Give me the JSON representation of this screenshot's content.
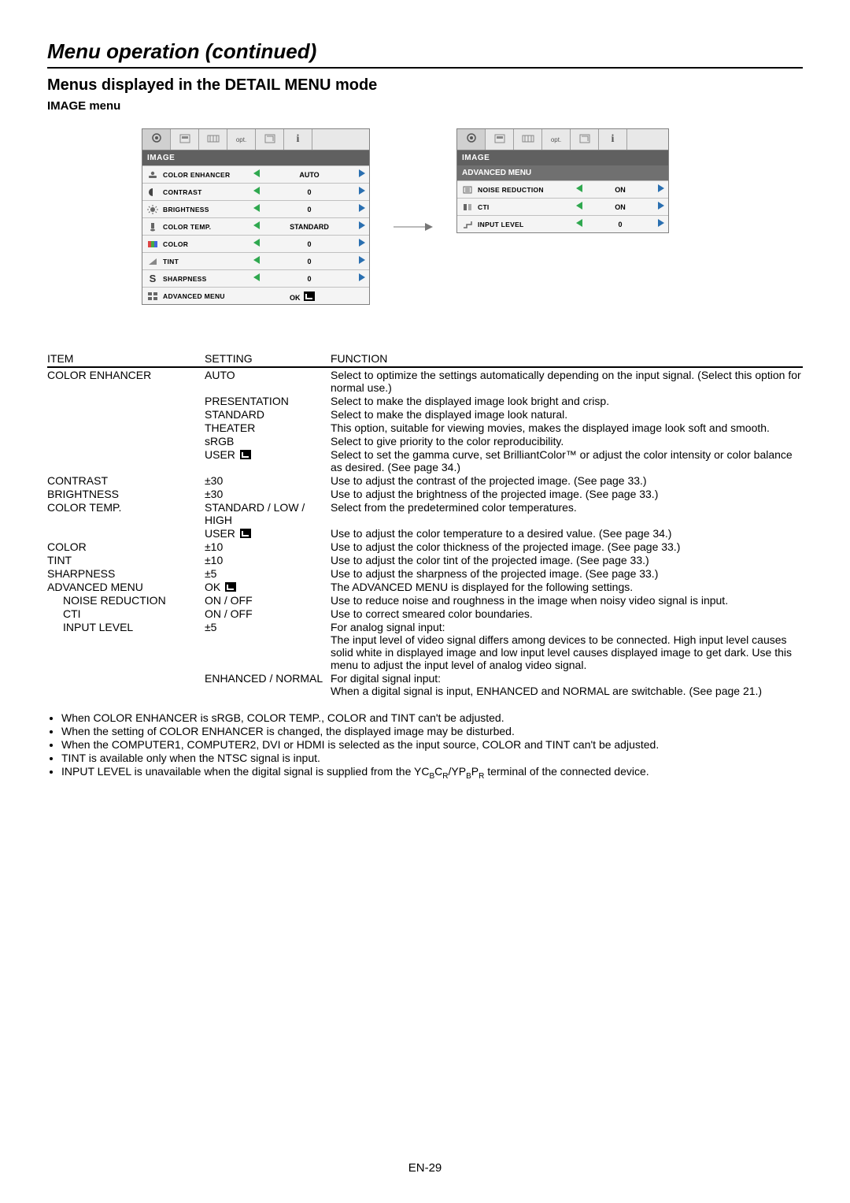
{
  "page_title": "Menu operation (continued)",
  "section_title": "Menus displayed in the DETAIL MENU mode",
  "sub_title": "IMAGE menu",
  "colors": {
    "arrow_left": "#2fa84f",
    "arrow_right": "#2a6fb0",
    "panel_header_bg": "#606060",
    "tab_opt": "opt."
  },
  "panel_image": {
    "header": "IMAGE",
    "rows": [
      {
        "label": "COLOR ENHANCER",
        "value": "AUTO"
      },
      {
        "label": "CONTRAST",
        "value": "0"
      },
      {
        "label": "BRIGHTNESS",
        "value": "0"
      },
      {
        "label": "COLOR TEMP.",
        "value": "STANDARD"
      },
      {
        "label": "COLOR",
        "value": "0"
      },
      {
        "label": "TINT",
        "value": "0"
      },
      {
        "label": "SHARPNESS",
        "value": "0"
      },
      {
        "label": "ADVANCED MENU",
        "value": "OK",
        "ok": true
      }
    ]
  },
  "panel_advanced": {
    "header": "IMAGE",
    "subheader": "ADVANCED MENU",
    "rows": [
      {
        "label": "NOISE REDUCTION",
        "value": "ON"
      },
      {
        "label": "CTI",
        "value": "ON"
      },
      {
        "label": "INPUT LEVEL",
        "value": "0"
      }
    ]
  },
  "def_headers": {
    "item": "ITEM",
    "setting": "SETTING",
    "function": "FUNCTION"
  },
  "defs": [
    {
      "item": "COLOR ENHANCER",
      "setting": "AUTO",
      "function": "Select to optimize the settings automatically depending on the input signal. (Select this option for normal use.)"
    },
    {
      "item": "",
      "setting": "PRESENTATION",
      "function": "Select to make the displayed image look bright and crisp."
    },
    {
      "item": "",
      "setting": "STANDARD",
      "function": "Select to make the displayed image look natural."
    },
    {
      "item": "",
      "setting": "THEATER",
      "function": "This option, suitable for viewing movies, makes the displayed image look soft and smooth."
    },
    {
      "item": "",
      "setting": "sRGB",
      "function": "Select to give priority to the color reproducibility."
    },
    {
      "item": "",
      "setting": "USER",
      "enter": true,
      "function": "Select to set the gamma curve, set BrilliantColor™ or adjust the color intensity or color balance as desired. (See page 34.)"
    },
    {
      "item": "CONTRAST",
      "setting": "±30",
      "function": "Use to adjust the contrast of the projected image. (See page 33.)"
    },
    {
      "item": "BRIGHTNESS",
      "setting": "±30",
      "function": "Use to adjust the brightness of the projected image. (See page 33.)"
    },
    {
      "item": "COLOR TEMP.",
      "setting": "STANDARD / LOW / HIGH",
      "function": "Select from the predetermined color temperatures."
    },
    {
      "item": "",
      "setting": "USER",
      "enter": true,
      "function": "Use to adjust the color temperature to a desired value. (See page 34.)"
    },
    {
      "item": "COLOR",
      "setting": "±10",
      "function": "Use to adjust the color thickness of the projected image. (See page 33.)"
    },
    {
      "item": "TINT",
      "setting": "±10",
      "function": "Use to adjust the color tint of the projected image. (See page 33.)"
    },
    {
      "item": "SHARPNESS",
      "setting": "±5",
      "function": "Use to adjust the sharpness of the projected image. (See page 33.)"
    },
    {
      "item": "ADVANCED MENU",
      "setting": "OK",
      "enter": true,
      "function": "The ADVANCED MENU is displayed for the following settings."
    },
    {
      "item": "NOISE REDUCTION",
      "indent": 1,
      "setting": "ON / OFF",
      "function": "Use to reduce noise and roughness in the image when noisy video signal is input."
    },
    {
      "item": "CTI",
      "indent": 1,
      "setting": "ON / OFF",
      "function": "Use to correct smeared color boundaries."
    },
    {
      "item": "INPUT LEVEL",
      "indent": 1,
      "setting": "±5",
      "function": "For analog signal input:\nThe input level of video signal differs among devices to be connected. High input level causes solid white in displayed image and low input level causes displayed image to get dark. Use this menu to adjust the input level of analog video signal."
    },
    {
      "item": "",
      "setting": "ENHANCED / NORMAL",
      "function": "For digital signal input:\nWhen a digital signal is input, ENHANCED and NORMAL are switchable. (See page 21.)"
    }
  ],
  "notes": [
    "When COLOR ENHANCER is sRGB, COLOR TEMP., COLOR and TINT can't be adjusted.",
    "When the setting of COLOR ENHANCER is changed, the displayed image may be disturbed.",
    "When the COMPUTER1, COMPUTER2, DVI or HDMI is selected as the input source, COLOR and TINT can't be adjusted.",
    "TINT is available only when the NTSC signal is input.",
    "INPUT LEVEL is unavailable when the digital signal is supplied from the YCBCR/YPBPR terminal of the connected device."
  ],
  "page_num": "EN-29"
}
